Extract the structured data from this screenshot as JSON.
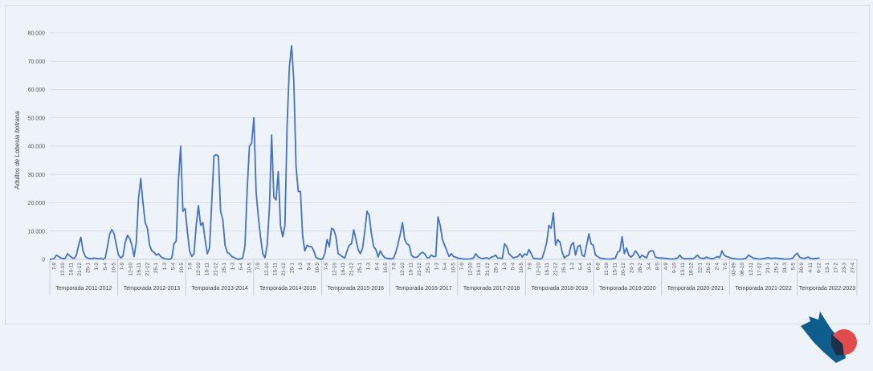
{
  "chart_data": {
    "type": "line",
    "title": "",
    "xlabel": "",
    "ylabel": "Adultos de  Lobesia botrana",
    "ylim": [
      0,
      80000
    ],
    "y_ticks": [
      "0",
      "10.000",
      "20.000",
      "30.000",
      "40.000",
      "50.000",
      "60.000",
      "70.000",
      "80.000"
    ],
    "grid": true,
    "line_color": "#4472c4",
    "seasons": [
      {
        "label": "Temporada 2011-2012",
        "ticks": [
          "7-9",
          "12-10",
          "16-11",
          "21-12",
          "25-1",
          "1-3",
          "5-4",
          "10-5"
        ]
      },
      {
        "label": "Temporada 2012-2013",
        "ticks": [
          "7-9",
          "12-10",
          "16-11",
          "21-12",
          "25-1",
          "1-3",
          "5-4",
          "10-5"
        ]
      },
      {
        "label": "Temporada 2013-2014",
        "ticks": [
          "7-9",
          "12-10",
          "16-11",
          "21-12",
          "25-1",
          "1-3",
          "5-4",
          "10-5"
        ]
      },
      {
        "label": "Temporada 2014-2015",
        "ticks": [
          "7-9",
          "12-10",
          "16-11",
          "21-12",
          "25-1",
          "1-3",
          "5-4",
          "10-5"
        ]
      },
      {
        "label": "Temporada 2015-2016",
        "ticks": [
          "7-9",
          "12-10",
          "16-11",
          "21-12",
          "25-1",
          "1-3",
          "5-4",
          "10-5"
        ]
      },
      {
        "label": "Temporada 2016-2017",
        "ticks": [
          "7-9",
          "12-10",
          "16-11",
          "21-12",
          "25-1",
          "1-3",
          "5-4",
          "10-5"
        ]
      },
      {
        "label": "Temporada 2017-2018",
        "ticks": [
          "7-9",
          "12-10",
          "16-11",
          "21-12",
          "25-1",
          "1-3",
          "5-4",
          "10-5"
        ]
      },
      {
        "label": "Temporada 2018-2019",
        "ticks": [
          "7-9",
          "12-10",
          "16-11",
          "21-12",
          "25-1",
          "1-3",
          "5-4",
          "10-5"
        ]
      },
      {
        "label": "Temporada 2019-2020",
        "ticks": [
          "6-9",
          "11-10",
          "15-11",
          "20-12",
          "24-1",
          "28-2",
          "3-4",
          "8-5"
        ]
      },
      {
        "label": "Temporada 2020-2021",
        "ticks": [
          "4-9",
          "9-10",
          "13-11",
          "18-12",
          "22-1",
          "26-2",
          "2-4",
          "7-5"
        ]
      },
      {
        "label": "Temporada 2021-2022",
        "ticks": [
          "03-09",
          "08-10",
          "12-11",
          "17-12",
          "21-1",
          "25-2",
          "31-3",
          "5-5"
        ]
      },
      {
        "label": "Temporada 2022-2023",
        "ticks": [
          "30-9",
          "4-11",
          "9-12",
          "13-1",
          "17-2",
          "23-3",
          "27-4"
        ]
      }
    ],
    "series": [
      {
        "values": [
          0,
          100,
          300,
          1500,
          1000,
          500,
          300,
          400,
          2000,
          1200,
          600,
          300,
          1500,
          5000,
          7800,
          3000,
          1000,
          500,
          300,
          200,
          500,
          300,
          200,
          400,
          0,
          500,
          4500,
          9000,
          10500,
          9000,
          5000,
          1500,
          500,
          1200,
          6000,
          8500,
          7500,
          5000,
          1000,
          6000,
          21500,
          28500,
          20000,
          13000,
          11000,
          5000,
          3000,
          2500,
          1500,
          2000,
          1000,
          500,
          200,
          100,
          0,
          500,
          5500,
          6500,
          28000,
          40000,
          17000,
          18000,
          10000,
          3000,
          1000,
          2000,
          12000,
          19000,
          12000,
          13000,
          7000,
          2000,
          4000,
          20000,
          36500,
          37000,
          36500,
          17000,
          14000,
          5000,
          2500,
          2000,
          1000,
          700,
          300,
          0,
          200,
          500,
          5000,
          25000,
          40000,
          41000,
          50000,
          24000,
          15000,
          8000,
          2000,
          600,
          5000,
          18000,
          44000,
          22000,
          21000,
          31000,
          12000,
          8000,
          12000,
          48000,
          68000,
          75500,
          63000,
          33000,
          24000,
          24000,
          8000,
          3000,
          5000,
          4500,
          4500,
          3000,
          700,
          300,
          0,
          200,
          2000,
          7000,
          4500,
          11000,
          10500,
          8000,
          2000,
          1500,
          900,
          500,
          3000,
          5000,
          5500,
          10500,
          7000,
          3500,
          2000,
          4000,
          10000,
          17000,
          15500,
          9000,
          4500,
          3500,
          800,
          3000,
          1500,
          600,
          400,
          300,
          200,
          500,
          2500,
          5500,
          9000,
          13000,
          7000,
          5500,
          5000,
          1500,
          800,
          700,
          1000,
          2000,
          2500,
          2000,
          600,
          600,
          1500,
          1000,
          1000,
          15000,
          12000,
          7000,
          5000,
          3000,
          1000,
          2000,
          1000,
          800,
          500,
          300,
          200,
          100,
          100,
          100,
          300,
          500,
          2000,
          900,
          500,
          300,
          400,
          600,
          200,
          800,
          1000,
          1500,
          400,
          500,
          300,
          5500,
          4500,
          2000,
          1200,
          500,
          800,
          1000,
          2000,
          800,
          2000,
          1500,
          3500,
          2000,
          400,
          300,
          200,
          100,
          500,
          3000,
          6000,
          12000,
          11000,
          16500,
          5000,
          7000,
          6000,
          2500,
          500,
          1200,
          1500,
          5000,
          6000,
          1500,
          4500,
          5000,
          1500,
          1000,
          5000,
          9000,
          5500,
          5000,
          1500,
          1000,
          500,
          300,
          200,
          100,
          100,
          100,
          300,
          500,
          2500,
          3000,
          8000,
          2000,
          4000,
          1500,
          800,
          1500,
          3000,
          2000,
          500,
          1500,
          1000,
          500,
          2500,
          3000,
          3000,
          800,
          600,
          500,
          500,
          400,
          300,
          200,
          100,
          100,
          300,
          500,
          1500,
          500,
          300,
          200,
          200,
          300,
          200,
          800,
          1500,
          500,
          400,
          300,
          800,
          500,
          300,
          200,
          600,
          1000,
          600,
          3000,
          1500,
          1000,
          800,
          500,
          300,
          200,
          100,
          100,
          100,
          200,
          500,
          1500,
          1000,
          500,
          300,
          200,
          100,
          200,
          300,
          500,
          600,
          300,
          400,
          500,
          400,
          300,
          200,
          100,
          100,
          100,
          200,
          500,
          1500,
          2200,
          800,
          500,
          300,
          600,
          800,
          300,
          200,
          300,
          400,
          500
        ]
      }
    ]
  }
}
